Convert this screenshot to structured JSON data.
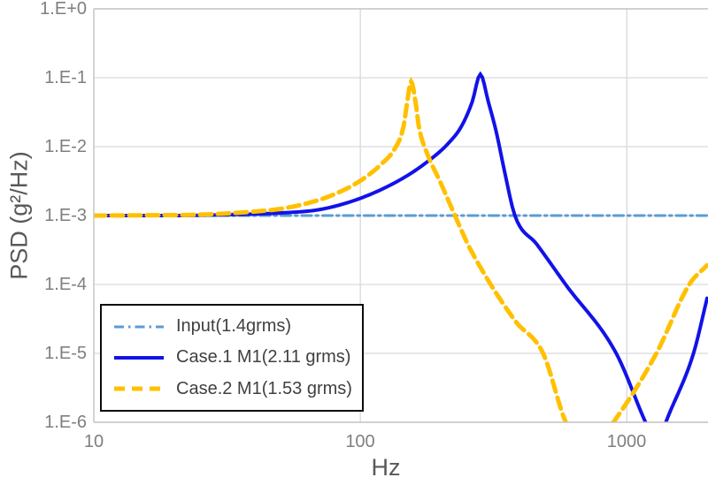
{
  "chart_data": {
    "type": "line",
    "title": "",
    "xlabel": "Hz",
    "ylabel": "PSD (g²/Hz)",
    "xscale": "log",
    "yscale": "log",
    "xlim": [
      10,
      2000
    ],
    "ylim": [
      1e-06,
      1
    ],
    "grid": true,
    "legend_position": "bottom-left-inside",
    "xticks": [
      10,
      100,
      1000
    ],
    "xtick_labels": [
      "10",
      "100",
      "1000"
    ],
    "ytick_labels": [
      "1.E+0",
      "1.E-1",
      "1.E-2",
      "1.E-3",
      "1.E-4",
      "1.E-5",
      "1.E-6"
    ],
    "colors": {
      "grid": "#d9d9d9",
      "border": "#c2c2c2",
      "tick_text": "#7f7f7f",
      "axis_title_text": "#595959",
      "legend_text": "#404040",
      "legend_border": "#0d0d0d"
    },
    "series": [
      {
        "name": "Input(1.4grms)",
        "color": "#5b9bd5",
        "line_style": "dash-dot",
        "dash": "11,5,2.5,5",
        "width": 3,
        "points_hz_psd": [
          [
            10,
            0.001
          ],
          [
            2000,
            0.001
          ]
        ]
      },
      {
        "name": "Case.1 M1(2.11 grms)",
        "color": "#1212e8",
        "line_style": "solid",
        "dash": "",
        "width": 4,
        "points_hz_psd": [
          [
            10,
            0.001
          ],
          [
            20,
            0.001
          ],
          [
            32,
            0.00103
          ],
          [
            50,
            0.00109
          ],
          [
            71,
            0.00123
          ],
          [
            100,
            0.00178
          ],
          [
            141,
            0.0033
          ],
          [
            178,
            0.006
          ],
          [
            214,
            0.0112
          ],
          [
            240,
            0.02
          ],
          [
            263,
            0.045
          ],
          [
            282,
            0.112
          ],
          [
            302,
            0.045
          ],
          [
            324,
            0.016
          ],
          [
            347,
            0.0045
          ],
          [
            380,
            0.001
          ],
          [
            460,
            0.00038
          ],
          [
            589,
            0.0001
          ],
          [
            912,
            1e-05
          ],
          [
            1175,
            1e-06
          ],
          [
            1300,
            4.5e-07
          ],
          [
            1400,
            1e-06
          ],
          [
            1778,
            1e-05
          ],
          [
            2000,
            6.3e-05
          ]
        ]
      },
      {
        "name": "Case.2 M1(1.53 grms)",
        "color": "#ffc000",
        "line_style": "dashed",
        "dash": "13,7",
        "width": 5,
        "points_hz_psd": [
          [
            10,
            0.001
          ],
          [
            16,
            0.00101
          ],
          [
            25,
            0.00103
          ],
          [
            35,
            0.0011
          ],
          [
            50,
            0.00125
          ],
          [
            63,
            0.0015
          ],
          [
            79,
            0.002
          ],
          [
            100,
            0.0032
          ],
          [
            120,
            0.0056
          ],
          [
            135,
            0.0095
          ],
          [
            145,
            0.019
          ],
          [
            150,
            0.045
          ],
          [
            155,
            0.088
          ],
          [
            161,
            0.045
          ],
          [
            166,
            0.019
          ],
          [
            178,
            0.008
          ],
          [
            200,
            0.003
          ],
          [
            224,
            0.0011
          ],
          [
            240,
            0.0006
          ],
          [
            257,
            0.00034
          ],
          [
            380,
            3e-05
          ],
          [
            485,
            1e-05
          ],
          [
            590,
            1e-06
          ],
          [
            710,
            3.5e-07
          ],
          [
            890,
            1e-06
          ],
          [
            1290,
            1e-05
          ],
          [
            1714,
            0.0001
          ],
          [
            2000,
            0.00019
          ]
        ]
      }
    ]
  }
}
